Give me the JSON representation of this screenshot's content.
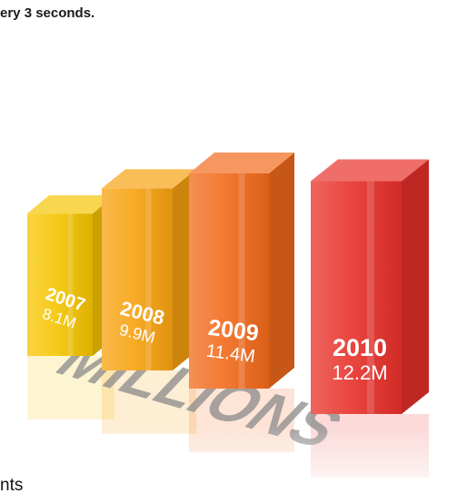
{
  "page": {
    "top_caption": "ery 3 seconds.",
    "bottom_caption": "nts"
  },
  "chart_data": {
    "type": "bar",
    "style": "3d",
    "title": "",
    "watermark": "MILLIONS",
    "categories": [
      "2007",
      "2008",
      "2009",
      "2010"
    ],
    "values": [
      8.1,
      9.9,
      11.4,
      12.2
    ],
    "value_labels": [
      "8.1M",
      "9.9M",
      "11.4M",
      "12.2M"
    ],
    "unit": "M",
    "colors": [
      "#f5c400",
      "#f7a20f",
      "#f26a1b",
      "#e8302a"
    ],
    "grid": false,
    "legend": "none"
  }
}
